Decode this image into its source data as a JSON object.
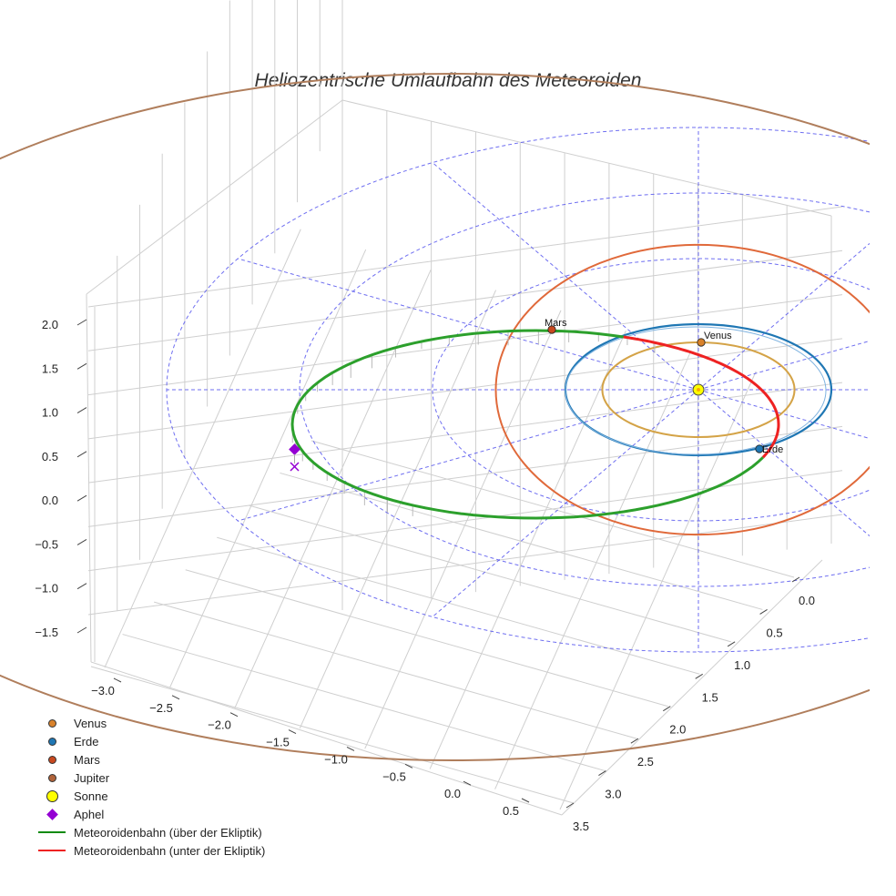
{
  "chart_data": {
    "type": "3d-orbit-plot",
    "title": "Heliozentrische Umlaufbahn des Meteoroiden",
    "x_ticks": [
      "−3.0",
      "−2.5",
      "−2.0",
      "−1.5",
      "−1.0",
      "−0.5",
      "0.0",
      "0.5"
    ],
    "y_ticks": [
      "0.0",
      "0.5",
      "1.0",
      "1.5",
      "2.0",
      "2.5",
      "3.0",
      "3.5"
    ],
    "z_ticks": [
      "2.0",
      "1.5",
      "1.0",
      "0.5",
      "0.0",
      "−0.5",
      "−1.0",
      "−1.5"
    ],
    "xlim": [
      -3.0,
      0.5
    ],
    "ylim": [
      0.0,
      3.5
    ],
    "zlim": [
      -1.5,
      2.0
    ],
    "grid": true,
    "orbits": [
      {
        "name": "Venus",
        "radius_au": 0.723,
        "color": "#d4a347"
      },
      {
        "name": "Erde",
        "radius_au": 1.0,
        "color": "#1f77b4"
      },
      {
        "name": "Mars",
        "radius_au": 1.524,
        "color": "#e0693a"
      },
      {
        "name": "Jupiter",
        "radius_au": 5.2,
        "color": "#b07e5c"
      }
    ],
    "bodies": [
      {
        "name": "Venus",
        "label": "Venus",
        "color": "#d9822b"
      },
      {
        "name": "Erde",
        "label": "Erde",
        "color": "#1f77b4"
      },
      {
        "name": "Mars",
        "label": "Mars",
        "color": "#c8491f"
      },
      {
        "name": "Sonne",
        "label": "",
        "color": "#ffff00"
      }
    ],
    "meteoroid": {
      "semi_major_axis_au": 2.15,
      "aphelion_au": 3.25,
      "perihelion_au": 1.04,
      "above_color": "#2ca02c",
      "below_color": "#ee2222"
    },
    "reference_circles_au": [
      1.0,
      2.0,
      3.0,
      4.0
    ],
    "legend": [
      {
        "label": "Venus",
        "kind": "dot",
        "color": "#d9822b"
      },
      {
        "label": "Erde",
        "kind": "dot",
        "color": "#1f77b4"
      },
      {
        "label": "Mars",
        "kind": "dot",
        "color": "#c8491f"
      },
      {
        "label": "Jupiter",
        "kind": "dot",
        "color": "#b0633a"
      },
      {
        "label": "Sonne",
        "kind": "bigdot",
        "color": "#ffff00"
      },
      {
        "label": "Aphel",
        "kind": "diamond",
        "color": "#9400d3"
      },
      {
        "label": "Meteoroidenbahn (über der Ekliptik)",
        "kind": "line",
        "color": "#0e8a0e"
      },
      {
        "label": "Meteoroidenbahn (unter der Ekliptik)",
        "kind": "line",
        "color": "#ee2222"
      }
    ]
  }
}
